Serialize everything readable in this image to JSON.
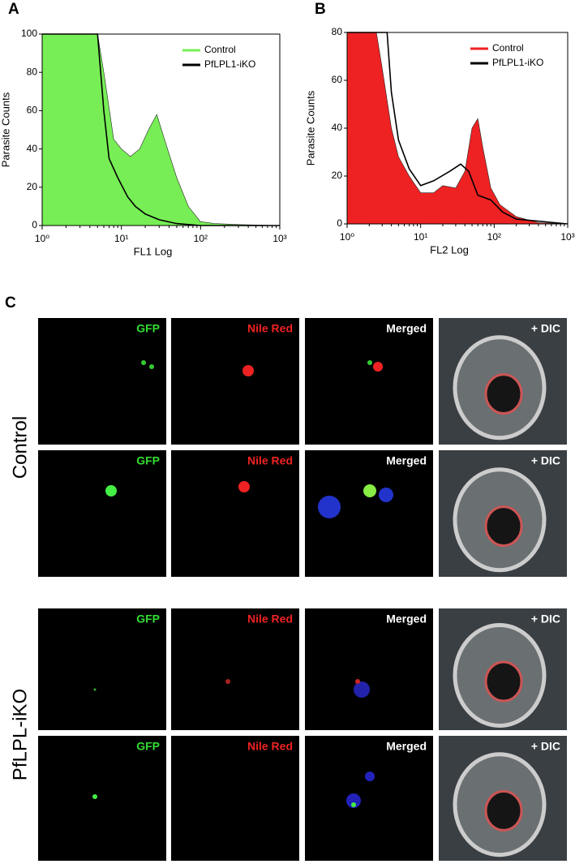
{
  "chart_data": [
    {
      "type": "line",
      "panel": "A",
      "xlabel": "FL1 Log",
      "ylabel": "Parasite Counts",
      "xscale": "log",
      "xlim": [
        1,
        1000
      ],
      "ylim": [
        0,
        100
      ],
      "xticks": [
        {
          "value": 1,
          "label": "10⁰"
        },
        {
          "value": 10,
          "label": "10¹"
        },
        {
          "value": 100,
          "label": "10²"
        },
        {
          "value": 1000,
          "label": "10³"
        }
      ],
      "yticks": [
        0,
        20,
        40,
        60,
        80,
        100
      ],
      "legend": "upper right",
      "series": [
        {
          "name": "Control",
          "color": "#77ee55",
          "filled": true,
          "x": [
            1,
            1,
            5,
            6,
            8,
            10,
            13,
            17,
            22,
            28,
            35,
            50,
            70,
            100,
            150,
            300,
            1000
          ],
          "values": [
            0,
            100,
            100,
            80,
            45,
            40,
            36,
            40,
            50,
            58,
            45,
            25,
            10,
            2,
            1,
            0.5,
            0
          ]
        },
        {
          "name": "PfLPL1-iKO",
          "color": "#000000",
          "filled": false,
          "x": [
            1,
            5,
            6,
            7,
            9,
            12,
            15,
            20,
            30,
            50,
            100,
            1000
          ],
          "values": [
            100,
            100,
            60,
            35,
            25,
            15,
            10,
            6,
            3,
            1,
            0,
            0
          ]
        }
      ]
    },
    {
      "type": "line",
      "panel": "B",
      "xlabel": "FL2 Log",
      "ylabel": "Parasite Counts",
      "xscale": "log",
      "xlim": [
        1,
        1000
      ],
      "ylim": [
        0,
        80
      ],
      "xticks": [
        {
          "value": 1,
          "label": "10⁰"
        },
        {
          "value": 10,
          "label": "10¹"
        },
        {
          "value": 100,
          "label": "10²"
        },
        {
          "value": 1000,
          "label": "10³"
        }
      ],
      "yticks": [
        0,
        20,
        40,
        60,
        80
      ],
      "legend": "upper right",
      "series": [
        {
          "name": "Control",
          "color": "#ee2222",
          "filled": true,
          "x": [
            1,
            1,
            2.5,
            3,
            4,
            5,
            7,
            10,
            15,
            20,
            30,
            40,
            50,
            60,
            70,
            90,
            120,
            200,
            400,
            1000
          ],
          "values": [
            0,
            80,
            80,
            65,
            40,
            28,
            20,
            13,
            13,
            16,
            15,
            22,
            40,
            44,
            32,
            15,
            8,
            3,
            0.5,
            0
          ]
        },
        {
          "name": "PfLPL1-iKO",
          "color": "#000000",
          "filled": false,
          "x": [
            1,
            3.5,
            4,
            5,
            7,
            10,
            15,
            25,
            35,
            45,
            60,
            90,
            130,
            200,
            1000
          ],
          "values": [
            80,
            80,
            55,
            35,
            23,
            16,
            18,
            22,
            25,
            22,
            12,
            10,
            5,
            2,
            0
          ]
        }
      ]
    }
  ],
  "panel_c": {
    "letter": "C",
    "groups": [
      {
        "label": "Control",
        "rows": [
          [
            "GFP",
            "Nile Red",
            "Merged",
            "+ DIC"
          ],
          [
            "GFP",
            "Nile Red",
            "Merged",
            "+ DIC"
          ]
        ]
      },
      {
        "label": "PfLPL-iKO",
        "rows": [
          [
            "GFP",
            "Nile Red",
            "Merged",
            "+ DIC"
          ],
          [
            "GFP",
            "Nile Red",
            "Merged",
            "+ DIC"
          ]
        ]
      }
    ]
  }
}
